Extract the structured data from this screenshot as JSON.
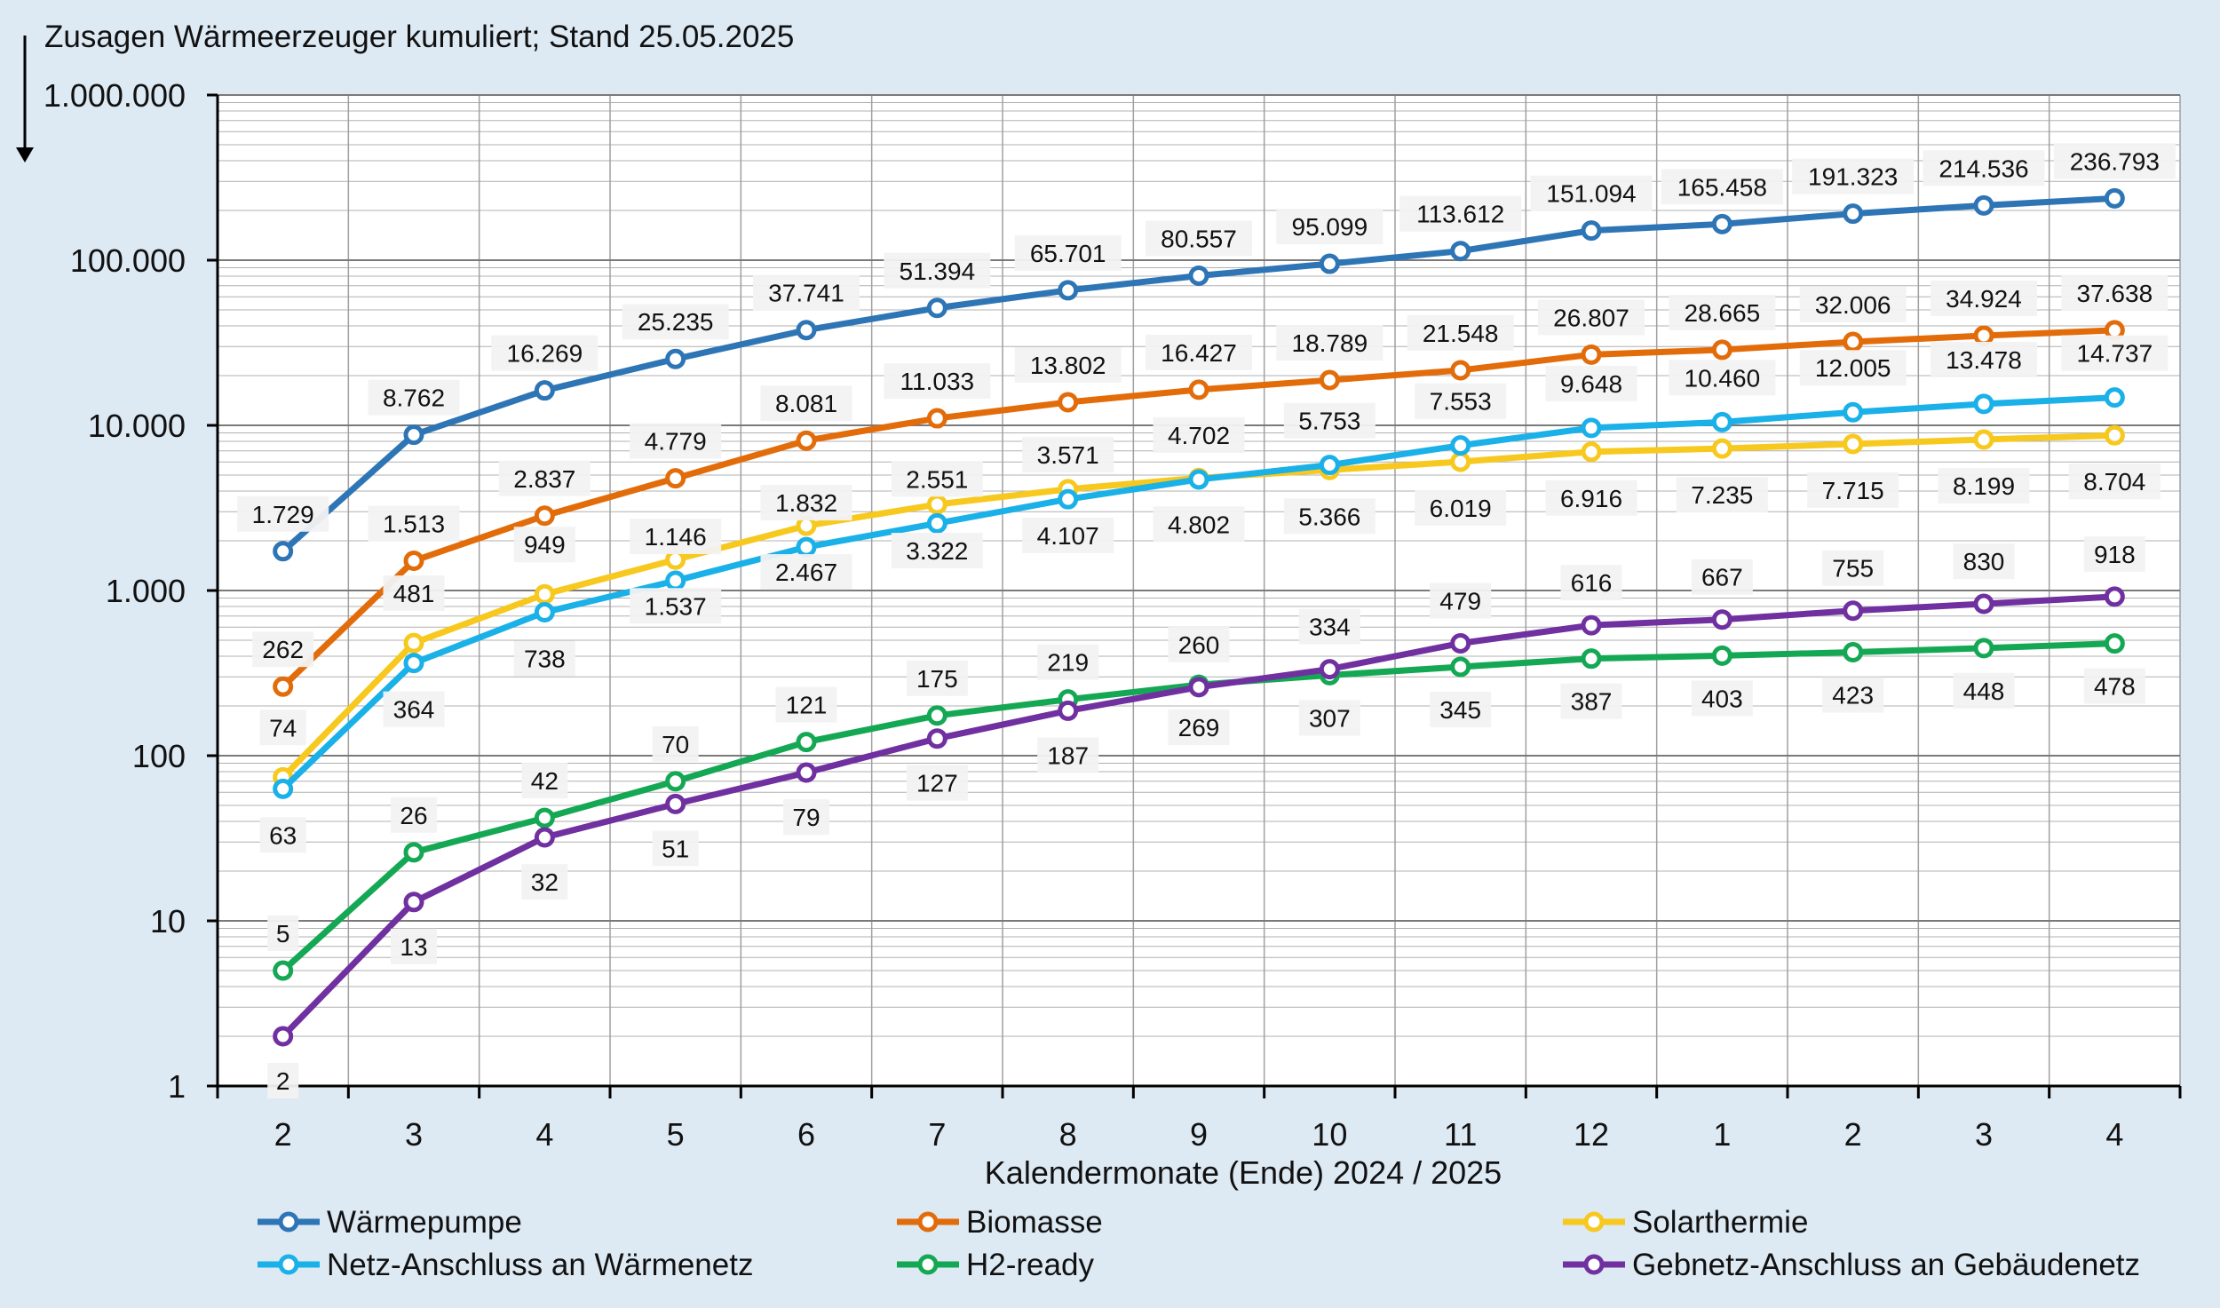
{
  "chart_data": {
    "type": "line",
    "title": "Zusagen Wärmeerzeuger kumuliert; Stand  25.05.2025",
    "xlabel": "Kalendermonate (Ende) 2024 / 2025",
    "ylabel": "",
    "yscale": "log",
    "ylim": [
      1,
      1000000
    ],
    "grid": true,
    "legend_position": "bottom",
    "categories": [
      "2",
      "3",
      "4",
      "5",
      "6",
      "7",
      "8",
      "9",
      "10",
      "11",
      "12",
      "1",
      "2",
      "3",
      "4"
    ],
    "y_tick_labels": [
      "1",
      "10",
      "100",
      "1.000",
      "10.000",
      "100.000",
      "1.000.000"
    ],
    "series": [
      {
        "name": "Wärmepumpe",
        "color": "#2e75b6",
        "values": [
          1729,
          8762,
          16269,
          25235,
          37741,
          51394,
          65701,
          80557,
          95099,
          113612,
          151094,
          165458,
          191323,
          214536,
          236793
        ],
        "labels": [
          "1.729",
          "8.762",
          "16.269",
          "25.235",
          "37.741",
          "51.394",
          "65.701",
          "80.557",
          "95.099",
          "113.612",
          "151.094",
          "165.458",
          "191.323",
          "214.536",
          "236.793"
        ]
      },
      {
        "name": "Biomasse",
        "color": "#e36c0a",
        "values": [
          262,
          1513,
          2837,
          4779,
          8081,
          11033,
          13802,
          16427,
          18789,
          21548,
          26807,
          28665,
          32006,
          34924,
          37638
        ],
        "labels": [
          "262",
          "1.513",
          "2.837",
          "4.779",
          "8.081",
          "11.033",
          "13.802",
          "16.427",
          "18.789",
          "21.548",
          "26.807",
          "28.665",
          "32.006",
          "34.924",
          "37.638"
        ]
      },
      {
        "name": "Solarthermie",
        "color": "#f7c81e",
        "values": [
          74,
          481,
          949,
          1537,
          2467,
          3322,
          4107,
          4802,
          5366,
          6019,
          6916,
          7235,
          7715,
          8199,
          8704
        ],
        "labels": [
          "74",
          "481",
          "949",
          "1.537",
          "2.467",
          "3.322",
          "4.107",
          "4.802",
          "5.366",
          "6.019",
          "6.916",
          "7.235",
          "7.715",
          "8.199",
          "8.704"
        ]
      },
      {
        "name": "Netz-Anschluss an Wärmenetz",
        "color": "#1ab0e8",
        "values": [
          63,
          364,
          738,
          1146,
          1832,
          2551,
          3571,
          4702,
          5753,
          7553,
          9648,
          10460,
          12005,
          13478,
          14737
        ],
        "labels": [
          "63",
          "364",
          "738",
          "1.146",
          "1.832",
          "2.551",
          "3.571",
          "4.702",
          "5.753",
          "7.553",
          "9.648",
          "10.460",
          "12.005",
          "13.478",
          "14.737"
        ]
      },
      {
        "name": "H2-ready",
        "color": "#15a854",
        "values": [
          5,
          26,
          42,
          70,
          121,
          175,
          219,
          269,
          307,
          345,
          387,
          403,
          423,
          448,
          478
        ],
        "labels": [
          "5",
          "26",
          "42",
          "70",
          "121",
          "175",
          "219",
          "269",
          "307",
          "345",
          "387",
          "403",
          "423",
          "448",
          "478"
        ]
      },
      {
        "name": "Gebnetz-Anschluss an Gebäudenetz",
        "color": "#7030a0",
        "values": [
          2,
          13,
          32,
          51,
          79,
          127,
          187,
          260,
          334,
          479,
          616,
          667,
          755,
          830,
          918
        ],
        "labels": [
          "2",
          "13",
          "32",
          "51",
          "79",
          "127",
          "187",
          "260",
          "334",
          "479",
          "616",
          "667",
          "755",
          "830",
          "918"
        ]
      }
    ]
  }
}
